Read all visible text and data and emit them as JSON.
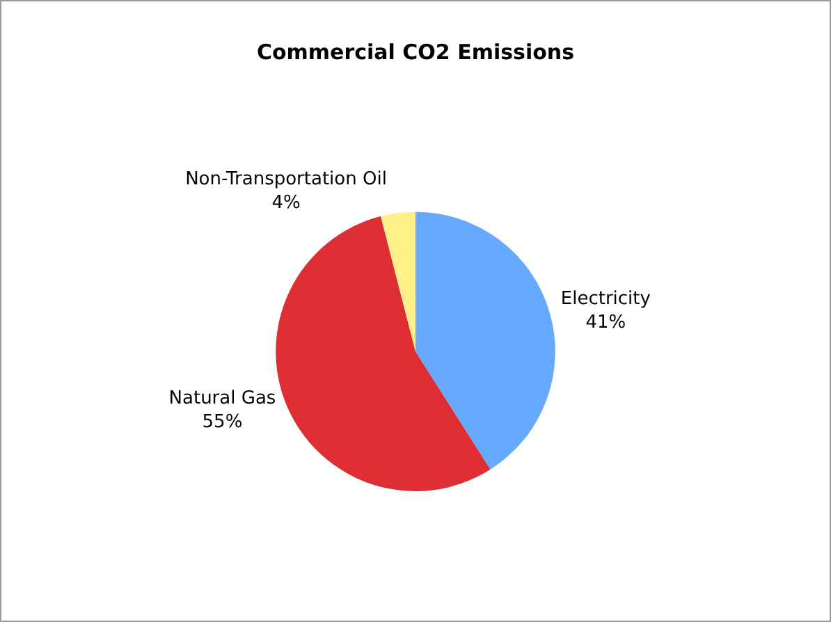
{
  "chart_data": {
    "type": "pie",
    "title": "Commercial CO2 Emissions",
    "categories": [
      "Electricity",
      "Natural Gas",
      "Non-Transportation Oil"
    ],
    "values": [
      41,
      55,
      4
    ],
    "value_labels": [
      "41%",
      "55%",
      "4%"
    ],
    "colors": [
      "#66aaff",
      "#dd2e33",
      "#fff08a"
    ],
    "legend": false
  }
}
